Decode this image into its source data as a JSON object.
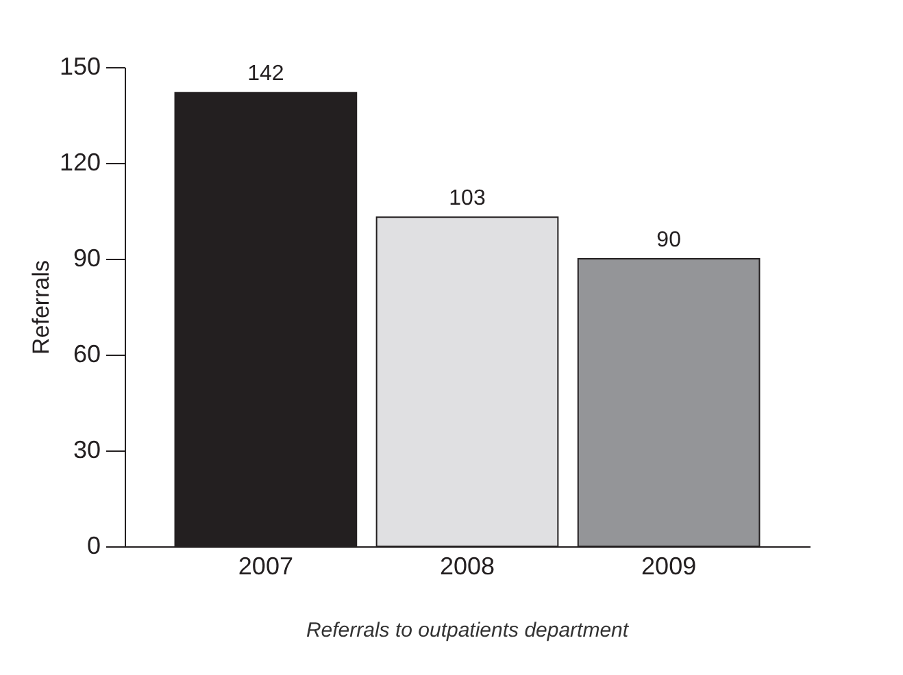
{
  "chart_data": {
    "type": "bar",
    "ylabel": "Referrals",
    "categories": [
      "2007",
      "2008",
      "2009"
    ],
    "values": [
      142,
      103,
      90
    ],
    "colors": [
      "#231f20",
      "#e0e0e2",
      "#949598"
    ],
    "ylim": [
      0,
      150
    ],
    "yticks": [
      0,
      30,
      60,
      90,
      120,
      150
    ],
    "grid": false,
    "data_labels": true,
    "annotations": [
      "Referrals to outpatients department"
    ]
  }
}
